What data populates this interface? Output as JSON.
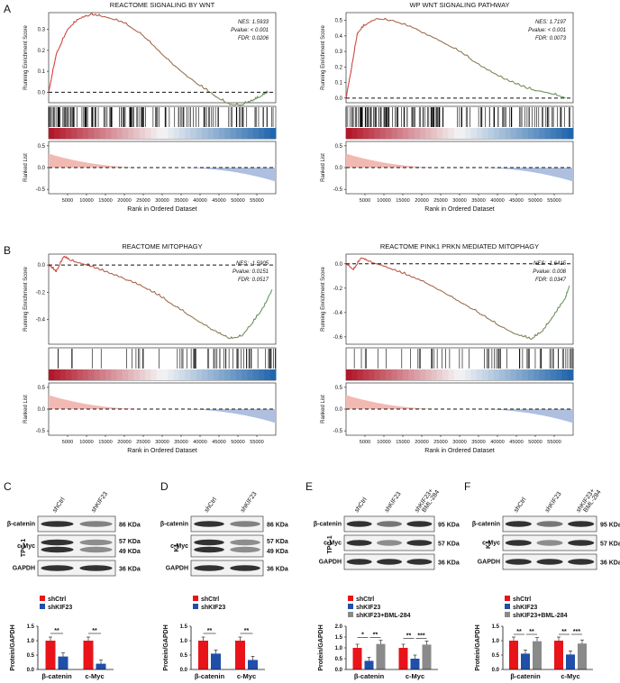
{
  "panel_letters": {
    "A": "A",
    "B": "B",
    "C": "C",
    "D": "D",
    "E": "E",
    "F": "F"
  },
  "gsea_common": {
    "yaxis_running": "Running Enrichment Score",
    "yaxis_ranked": "Ranked List",
    "xaxis": "Rank in Ordered Dataset",
    "xticks": [
      "5000",
      "10000",
      "15000",
      "20000",
      "25000",
      "30000",
      "35000",
      "40000",
      "45000",
      "50000",
      "55000"
    ]
  },
  "chart_data": [
    {
      "type": "line",
      "title": "REACTOME SIGNALING BY WNT",
      "nes": "NES: 1.5933",
      "pvalue": "Pvalue: < 0.001",
      "fdr": "FDR: 0.0206",
      "yticks": [
        "0.0",
        "0.1",
        "0.2",
        "0.3"
      ],
      "ylim": [
        -0.05,
        0.38
      ],
      "x": [
        0,
        2000,
        5000,
        8000,
        11000,
        15000,
        20000,
        25000,
        30000,
        35000,
        40000,
        45000,
        48000,
        51000,
        54000,
        56000,
        58000
      ],
      "y": [
        0.0,
        0.18,
        0.3,
        0.35,
        0.37,
        0.36,
        0.33,
        0.27,
        0.18,
        0.1,
        0.03,
        -0.03,
        -0.06,
        -0.06,
        -0.04,
        -0.02,
        0.0
      ],
      "ranked_yticks": [
        "0.5",
        "0.0",
        "-0.5"
      ]
    },
    {
      "type": "line",
      "title": "WP WNT SIGNALING PATHWAY",
      "nes": "NES: 1.7197",
      "pvalue": "Pvalue: < 0.001",
      "fdr": "FDR: 0.0073",
      "yticks": [
        "0.0",
        "0.1",
        "0.2",
        "0.3",
        "0.4",
        "0.5"
      ],
      "ylim": [
        -0.03,
        0.55
      ],
      "x": [
        0,
        1500,
        3000,
        5000,
        8000,
        12000,
        18000,
        24000,
        30000,
        36000,
        42000,
        48000,
        54000,
        58000
      ],
      "y": [
        0.0,
        0.2,
        0.42,
        0.47,
        0.51,
        0.5,
        0.45,
        0.38,
        0.3,
        0.2,
        0.12,
        0.06,
        0.03,
        0.0
      ],
      "ranked_yticks": [
        "0.5",
        "0.0",
        "-0.5"
      ]
    },
    {
      "type": "line",
      "title": "REACTOME MITOPHAGY",
      "nes": "NES: -1.5905",
      "pvalue": "Pvalue: 0.0151",
      "fdr": "FDR: 0.0517",
      "yticks": [
        "0.0",
        "-0.2",
        "-0.4"
      ],
      "ylim": [
        -0.58,
        0.08
      ],
      "x": [
        0,
        2000,
        4000,
        6000,
        10000,
        15000,
        20000,
        25000,
        30000,
        35000,
        40000,
        45000,
        48000,
        51000,
        54000,
        57000,
        59000
      ],
      "y": [
        0.0,
        -0.05,
        0.06,
        0.03,
        0.0,
        -0.05,
        -0.1,
        -0.16,
        -0.24,
        -0.33,
        -0.42,
        -0.5,
        -0.54,
        -0.52,
        -0.42,
        -0.3,
        -0.18
      ],
      "ranked_yticks": [
        "0.5",
        "0.0",
        "-0.5"
      ]
    },
    {
      "type": "line",
      "title": "REACTOME PINK1 PRKN MEDIATED MITOPHAGY",
      "nes": "NES: -1.6415",
      "pvalue": "Pvalue: 0.008",
      "fdr": "FDR: 0.0347",
      "yticks": [
        "0.0",
        "-0.2",
        "-0.4",
        "-0.6"
      ],
      "ylim": [
        -0.66,
        0.08
      ],
      "x": [
        0,
        2000,
        4000,
        6000,
        10000,
        15000,
        20000,
        25000,
        30000,
        35000,
        40000,
        45000,
        49000,
        52000,
        55000,
        58000,
        59000
      ],
      "y": [
        0.0,
        -0.05,
        0.05,
        0.02,
        -0.02,
        -0.08,
        -0.14,
        -0.22,
        -0.31,
        -0.4,
        -0.5,
        -0.58,
        -0.62,
        -0.55,
        -0.42,
        -0.28,
        -0.18
      ],
      "ranked_yticks": [
        "0.5",
        "0.0",
        "-0.5"
      ]
    },
    {
      "type": "bar",
      "panel": "C",
      "categories": [
        "β-catenin",
        "c-Myc"
      ],
      "series": [
        {
          "name": "shCtrl",
          "values": [
            1.0,
            1.0
          ]
        },
        {
          "name": "shKIF23",
          "values": [
            0.45,
            0.2
          ]
        }
      ],
      "ylabel": "Protein/GAPDH",
      "ylim": [
        0,
        1.5
      ],
      "yticks": [
        "0.0",
        "0.5",
        "1.0",
        "1.5"
      ],
      "sig": [
        "**",
        "**"
      ]
    },
    {
      "type": "bar",
      "panel": "D",
      "categories": [
        "β-catenin",
        "c-Myc"
      ],
      "series": [
        {
          "name": "shCtrl",
          "values": [
            1.0,
            1.0
          ]
        },
        {
          "name": "shKIF23",
          "values": [
            0.55,
            0.33
          ]
        }
      ],
      "ylabel": "Protein/GAPDH",
      "ylim": [
        0,
        1.5
      ],
      "yticks": [
        "0.0",
        "0.5",
        "1.0",
        "1.5"
      ],
      "sig": [
        "**",
        "**"
      ]
    },
    {
      "type": "bar",
      "panel": "E",
      "categories": [
        "β-catenin",
        "c-Myc"
      ],
      "series": [
        {
          "name": "shCtrl",
          "values": [
            1.0,
            1.0
          ]
        },
        {
          "name": "shKIF23",
          "values": [
            0.4,
            0.5
          ]
        },
        {
          "name": "shKIF23+BML-284",
          "values": [
            1.18,
            1.15
          ]
        }
      ],
      "ylabel": "Protein/GAPDH",
      "ylim": [
        0,
        2.0
      ],
      "yticks": [
        "0.0",
        "0.5",
        "1.0",
        "1.5",
        "2.0"
      ],
      "sig": [
        "*",
        "**",
        "**",
        "***"
      ]
    },
    {
      "type": "bar",
      "panel": "F",
      "categories": [
        "β-catenin",
        "c-Myc"
      ],
      "series": [
        {
          "name": "shCtrl",
          "values": [
            1.0,
            1.0
          ]
        },
        {
          "name": "shKIF23",
          "values": [
            0.55,
            0.52
          ]
        },
        {
          "name": "shKIF23+BML-284",
          "values": [
            0.98,
            0.9
          ]
        }
      ],
      "ylabel": "Protein/GAPDH",
      "ylim": [
        0,
        1.5
      ],
      "yticks": [
        "0.0",
        "0.5",
        "1.0",
        "1.5"
      ],
      "sig": [
        "**",
        "**",
        "**",
        "***"
      ]
    }
  ],
  "blots": {
    "C": {
      "cell": "TPC-1",
      "lanes": [
        "shCtrl",
        "shKIF23"
      ],
      "rows": [
        {
          "name": "β-catenin",
          "kda": [
            "86 KDa"
          ]
        },
        {
          "name": "c-Myc",
          "kda": [
            "57 KDa",
            "49 KDa"
          ]
        },
        {
          "name": "GAPDH",
          "kda": [
            "36 KDa"
          ]
        }
      ]
    },
    "D": {
      "cell": "K1",
      "lanes": [
        "shCtrl",
        "shKIF23"
      ],
      "rows": [
        {
          "name": "β-catenin",
          "kda": [
            "86 KDa"
          ]
        },
        {
          "name": "c-Myc",
          "kda": [
            "57 KDa",
            "49 KDa"
          ]
        },
        {
          "name": "GAPDH",
          "kda": [
            "36 KDa"
          ]
        }
      ]
    },
    "E": {
      "cell": "TPC-1",
      "lanes": [
        "shCtrl",
        "shKIF23",
        "shKIF23+\nBML-284"
      ],
      "rows": [
        {
          "name": "β-catenin",
          "kda": [
            "95 KDa"
          ]
        },
        {
          "name": "c-Myc",
          "kda": [
            "57 KDa"
          ]
        },
        {
          "name": "GAPDH",
          "kda": [
            "36 KDa"
          ]
        }
      ]
    },
    "F": {
      "cell": "K1",
      "lanes": [
        "shCtrl",
        "shKIF23",
        "shKIF23+\nBML-284"
      ],
      "rows": [
        {
          "name": "β-catenin",
          "kda": [
            "95 KDa"
          ]
        },
        {
          "name": "c-Myc",
          "kda": [
            "57 KDa"
          ]
        },
        {
          "name": "GAPDH",
          "kda": [
            "36 KDa"
          ]
        }
      ]
    }
  },
  "colors": {
    "red": "#e8141a",
    "blue": "#1f4fa8",
    "gray": "#8a8a8a",
    "line_red": "#d93b3b",
    "line_green": "#5b9a5b"
  }
}
